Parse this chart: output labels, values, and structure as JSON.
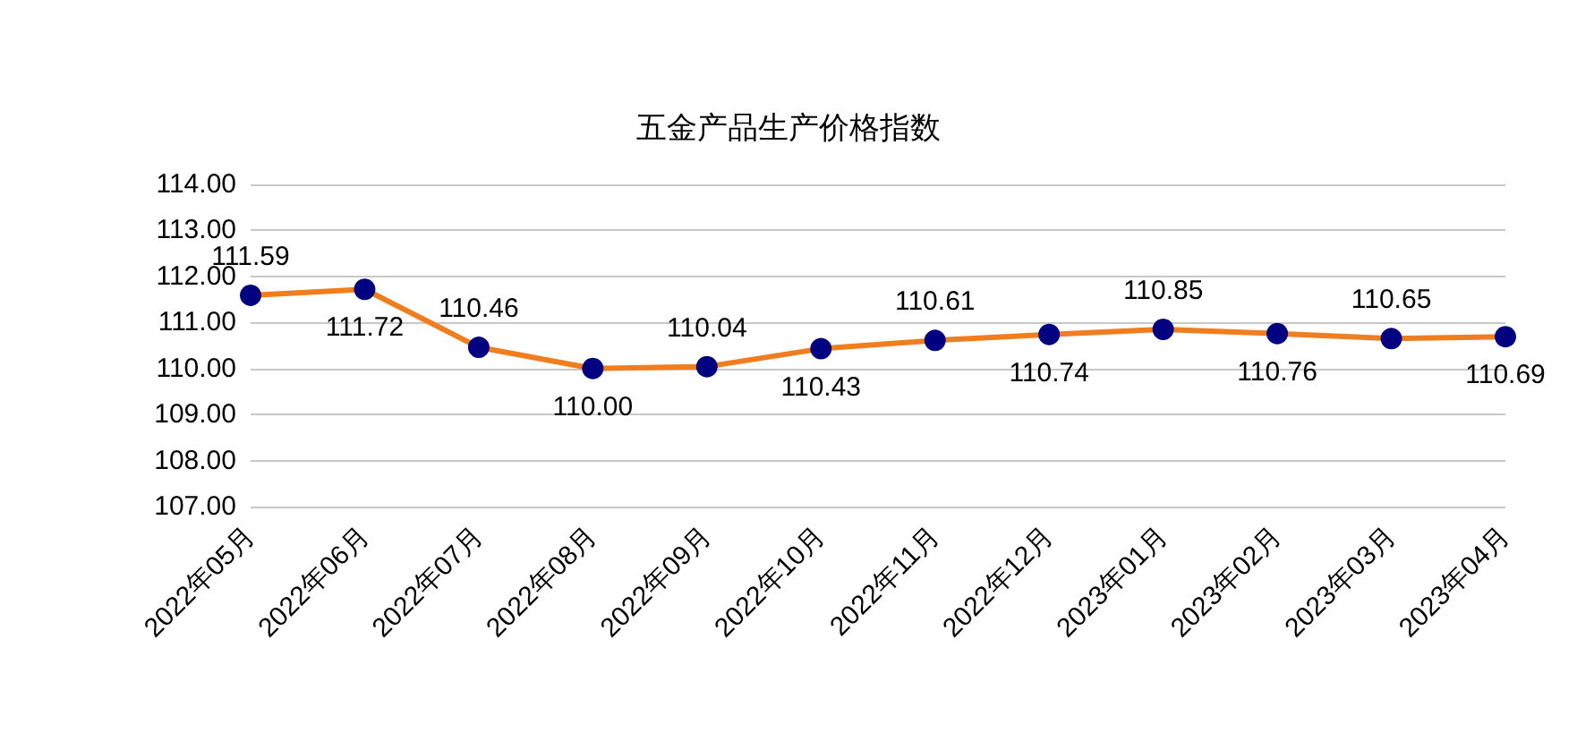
{
  "chart_data": {
    "type": "line",
    "title": "五金产品生产价格指数",
    "categories": [
      "2022年05月",
      "2022年06月",
      "2022年07月",
      "2022年08月",
      "2022年09月",
      "2022年10月",
      "2022年11月",
      "2022年12月",
      "2023年01月",
      "2023年02月",
      "2023年03月",
      "2023年04月"
    ],
    "series": [
      {
        "color": "#f07d1e",
        "colors": [
          "#000080",
          "#000080",
          "#000080",
          "#000080",
          "#000080",
          "#000080",
          "#000080",
          "#000080",
          "#000080",
          "#000080",
          "#000080",
          "#000080"
        ],
        "values": [
          111.59,
          111.72,
          110.46,
          110.0,
          110.04,
          110.43,
          110.61,
          110.74,
          110.85,
          110.76,
          110.65,
          110.69
        ],
        "value_labels": [
          "111.59",
          "111.72",
          "110.46",
          "110.00",
          "110.04",
          "110.43",
          "110.61",
          "110.74",
          "110.85",
          "110.76",
          "110.65",
          "110.69"
        ]
      }
    ],
    "ylim": [
      107,
      114
    ],
    "yticks": [
      {
        "value": 107,
        "label": "107.00"
      },
      {
        "value": 108,
        "label": "108.00"
      },
      {
        "value": 109,
        "label": "109.00"
      },
      {
        "value": 110,
        "label": "110.00"
      },
      {
        "value": 111,
        "label": "111.00"
      },
      {
        "value": 112,
        "label": "112.00"
      },
      {
        "value": 113,
        "label": "113.00"
      },
      {
        "value": 114,
        "label": "114.00"
      }
    ],
    "grid": "y",
    "marker": "circle",
    "line_style": "solid"
  }
}
